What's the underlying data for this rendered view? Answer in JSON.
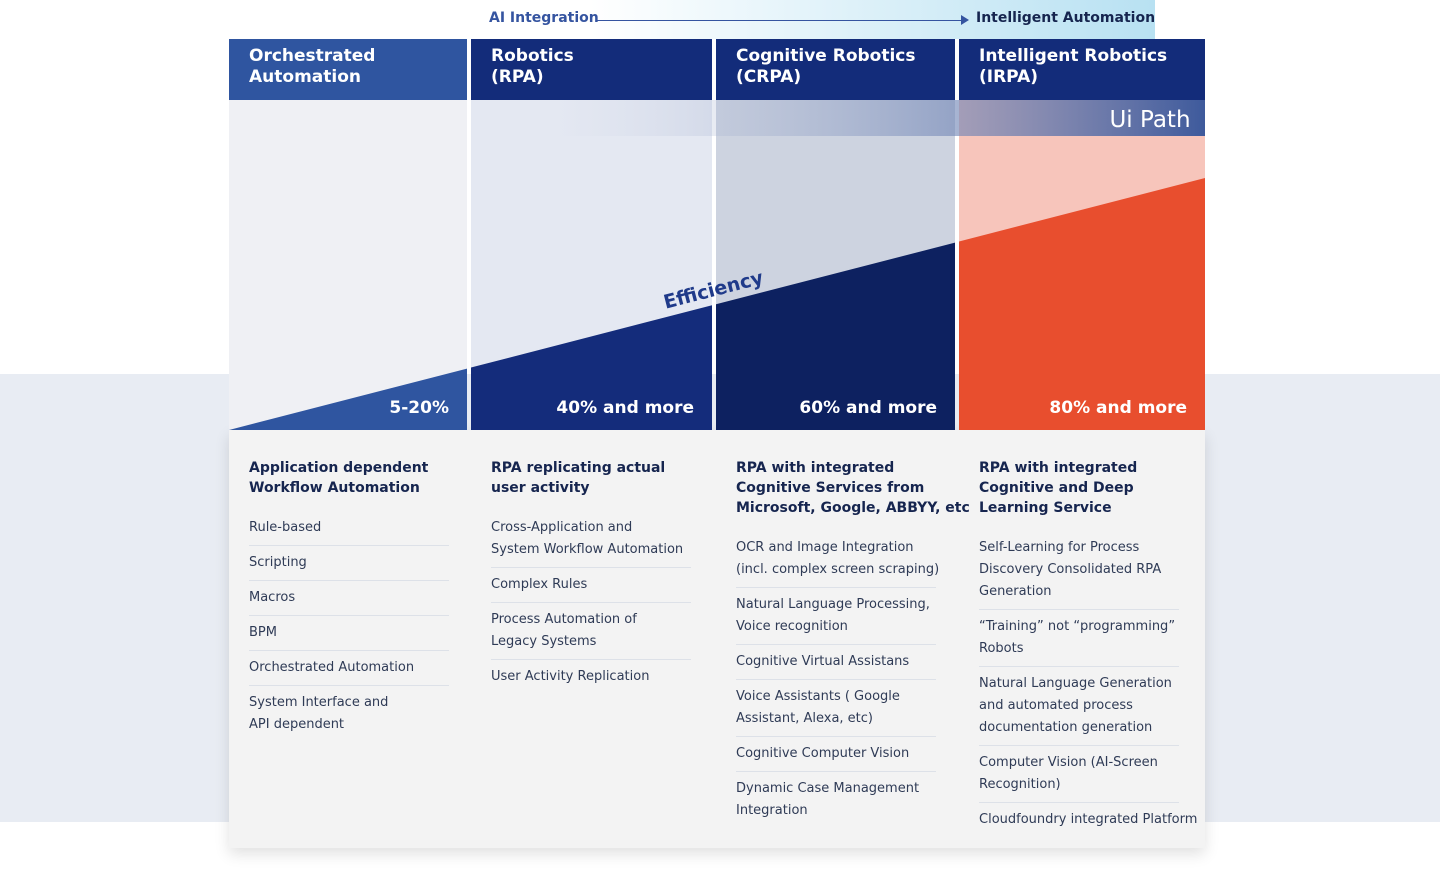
{
  "top_bar": {
    "left": "AI Integration",
    "right": "Intelligent Automation"
  },
  "brand": "Ui Path",
  "efficiency": "Efficiency",
  "columns": [
    {
      "title": [
        "Orchestrated",
        "Automation"
      ],
      "percentage": "5-20%",
      "heading": [
        "Application dependent",
        "Workflow Automation"
      ],
      "items": [
        [
          "Rule-based"
        ],
        [
          "Scripting"
        ],
        [
          "Macros"
        ],
        [
          "BPM"
        ],
        [
          "Orchestrated Automation"
        ],
        [
          "System Interface and",
          "API dependent"
        ]
      ]
    },
    {
      "title": [
        "Robotics",
        "(RPA)"
      ],
      "percentage": "40% and more",
      "heading": [
        "RPA replicating actual",
        "user activity"
      ],
      "items": [
        [
          "Cross-Application and",
          "System Workflow Automation"
        ],
        [
          "Complex Rules"
        ],
        [
          "Process Automation of",
          "Legacy Systems"
        ],
        [
          "User Activity Replication"
        ]
      ]
    },
    {
      "title": [
        "Cognitive Robotics",
        "(CRPA)"
      ],
      "percentage": "60% and more",
      "heading": [
        "RPA with integrated",
        "Cognitive Services from",
        "Microsoft, Google, ABBYY, etc"
      ],
      "items": [
        [
          "OCR and Image Integration",
          "(incl. complex screen scraping)"
        ],
        [
          "Natural Language Processing,",
          "Voice recognition"
        ],
        [
          "Cognitive Virtual Assistans"
        ],
        [
          "Voice Assistants ( Google",
          "Assistant, Alexa, etc)"
        ],
        [
          "Cognitive Computer Vision"
        ],
        [
          "Dynamic Case Management",
          "Integration"
        ]
      ]
    },
    {
      "title": [
        "Intelligent Robotics",
        "(IRPA)"
      ],
      "percentage": "80% and more",
      "heading": [
        "RPA with integrated",
        "Cognitive and Deep",
        "Learning Service"
      ],
      "items": [
        [
          "Self-Learning for Process",
          "Discovery Consolidated RPA",
          "Generation"
        ],
        [
          "“Training” not “programming”",
          "Robots"
        ],
        [
          "Natural Language Generation",
          "and automated process",
          "documentation generation"
        ],
        [
          "Computer Vision (AI-Screen",
          "Recognition)"
        ],
        [
          "Cloudfoundry integrated Platform"
        ]
      ]
    }
  ]
}
